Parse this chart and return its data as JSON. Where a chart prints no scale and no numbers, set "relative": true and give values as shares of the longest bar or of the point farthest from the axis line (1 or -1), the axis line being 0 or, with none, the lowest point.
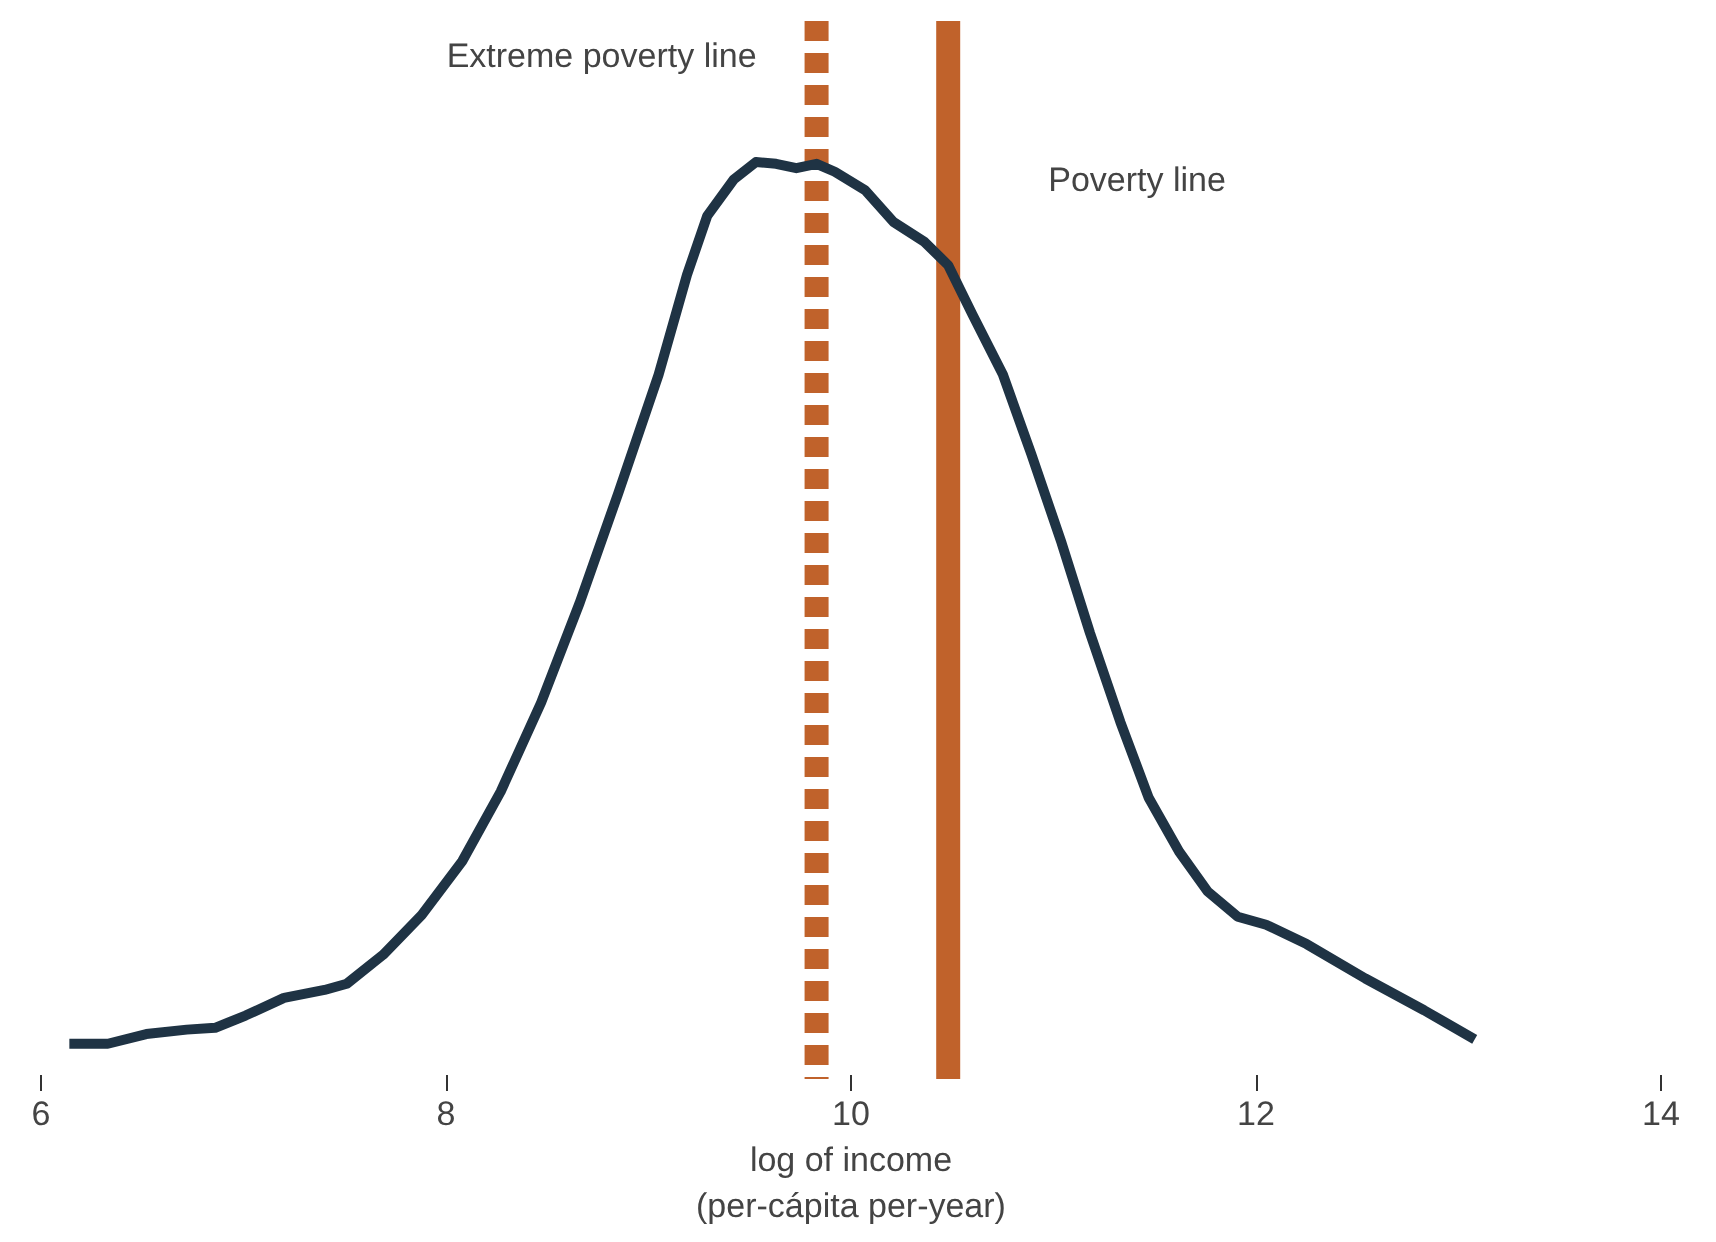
{
  "chart_data": {
    "type": "line",
    "relative": true,
    "xlabel": "log of income\n(per-cápita per-year)",
    "xlim": [
      6,
      14
    ],
    "xticks": [
      6,
      8,
      10,
      12,
      14
    ],
    "grid": false,
    "marker": "none",
    "line_style": "solid",
    "series": [
      {
        "color": "#1f3344",
        "x": [
          6.14,
          6.33,
          6.52,
          6.72,
          6.86,
          7.01,
          7.2,
          7.4,
          7.51,
          7.69,
          7.88,
          8.08,
          8.27,
          8.47,
          8.66,
          8.85,
          9.05,
          9.19,
          9.29,
          9.42,
          9.53,
          9.63,
          9.73,
          9.83,
          9.92,
          10.07,
          10.21,
          10.36,
          10.48,
          10.6,
          10.75,
          10.89,
          11.04,
          11.18,
          11.33,
          11.47,
          11.62,
          11.76,
          11.91,
          12.05,
          12.25,
          12.54,
          12.83,
          13.08
        ],
        "values": [
          0,
          0,
          0.011,
          0.016,
          0.018,
          0.032,
          0.052,
          0.061,
          0.068,
          0.101,
          0.146,
          0.207,
          0.286,
          0.387,
          0.5,
          0.624,
          0.759,
          0.872,
          0.939,
          0.98,
          1.0,
          0.998,
          0.993,
          0.998,
          0.989,
          0.968,
          0.932,
          0.91,
          0.883,
          0.827,
          0.759,
          0.669,
          0.568,
          0.466,
          0.365,
          0.279,
          0.218,
          0.173,
          0.144,
          0.135,
          0.113,
          0.074,
          0.038,
          0.005
        ]
      }
    ],
    "ref_lines": [
      {
        "axis": "x",
        "value": 9.83,
        "label": "Extreme poverty line",
        "color": "#c0622b",
        "line_style": "dashed"
      },
      {
        "axis": "x",
        "value": 10.48,
        "label": "Poverty line",
        "color": "#c0622b",
        "line_style": "solid"
      }
    ]
  }
}
